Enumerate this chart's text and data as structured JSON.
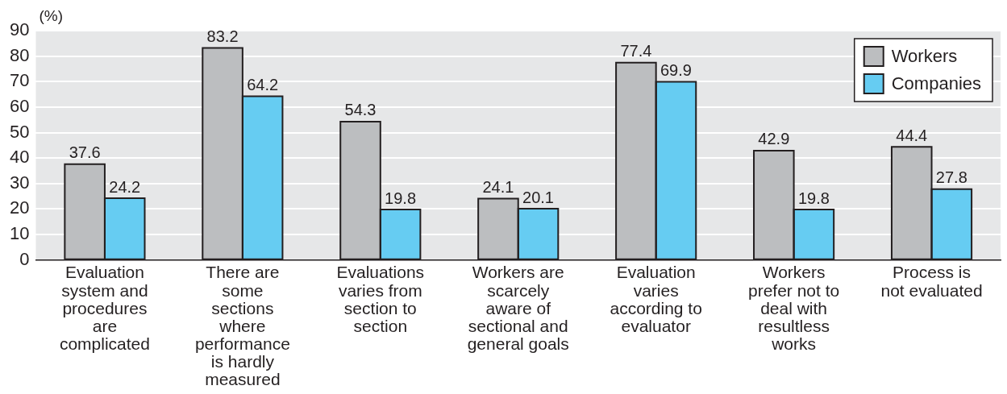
{
  "chart_data": {
    "type": "bar",
    "ylabel": "(%)",
    "categories": [
      "Evaluation system and procedures are complicated",
      "There are some sections where performance is hardly measured",
      "Evaluations varies from section to section",
      "Workers are scarcely aware of sectional and general goals",
      "Evaluation varies according to evaluator",
      "Workers prefer not to deal with resultless works",
      "Process is not evaluated"
    ],
    "series": [
      {
        "name": "Workers",
        "color": "#bcbec0",
        "values": [
          37.6,
          83.2,
          54.3,
          24.1,
          77.4,
          42.9,
          44.4
        ]
      },
      {
        "name": "Companies",
        "color": "#66ccf2",
        "values": [
          24.2,
          64.2,
          19.8,
          20.1,
          69.9,
          19.8,
          27.8
        ]
      }
    ],
    "ylim": [
      0,
      90
    ],
    "yticks": [
      0,
      10,
      20,
      30,
      40,
      50,
      60,
      70,
      80,
      90
    ],
    "grid": "y",
    "legend": "top right",
    "data_labels": true
  }
}
